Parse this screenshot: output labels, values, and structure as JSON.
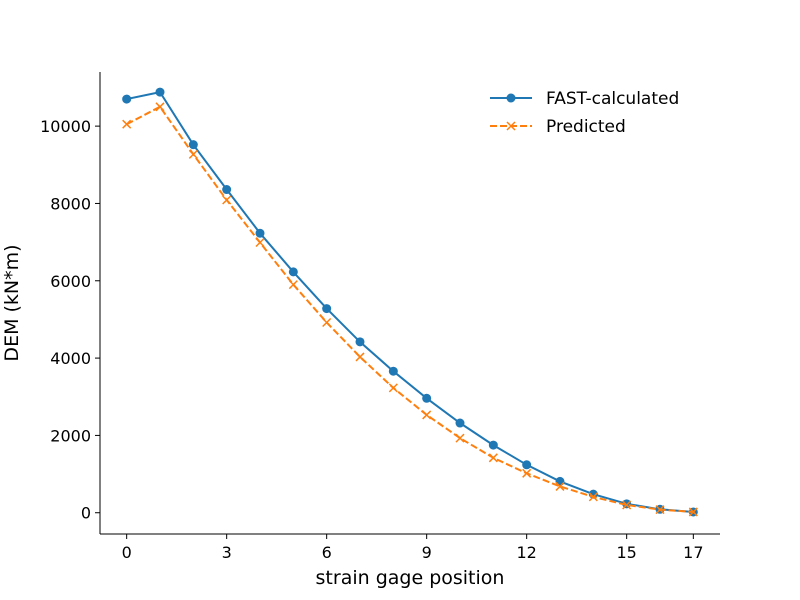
{
  "chart_data": {
    "type": "line",
    "title": "",
    "xlabel": "strain gage position",
    "ylabel": "DEM (kN*m)",
    "xlim": [
      -0.8,
      17.8
    ],
    "ylim": [
      -550,
      11400
    ],
    "xticks": [
      0,
      3,
      6,
      9,
      12,
      15,
      17
    ],
    "yticks": [
      0,
      2000,
      4000,
      6000,
      8000,
      10000
    ],
    "grid": false,
    "legend_position": "top-right",
    "x": [
      0,
      1,
      2,
      3,
      4,
      5,
      6,
      7,
      8,
      9,
      10,
      11,
      12,
      13,
      14,
      15,
      16,
      17
    ],
    "series": [
      {
        "name": "FAST-calculated",
        "color": "#1f77b4",
        "linestyle": "solid",
        "marker": "circle",
        "values": [
          10700,
          10880,
          9520,
          8360,
          7230,
          6230,
          5280,
          4420,
          3660,
          2960,
          2320,
          1750,
          1240,
          810,
          480,
          230,
          90,
          20
        ]
      },
      {
        "name": "Predicted",
        "color": "#ff7f0e",
        "linestyle": "dashed",
        "marker": "x",
        "values": [
          10050,
          10500,
          9270,
          8090,
          6990,
          5900,
          4920,
          4030,
          3230,
          2530,
          1930,
          1420,
          1020,
          680,
          410,
          200,
          80,
          20
        ]
      }
    ]
  }
}
